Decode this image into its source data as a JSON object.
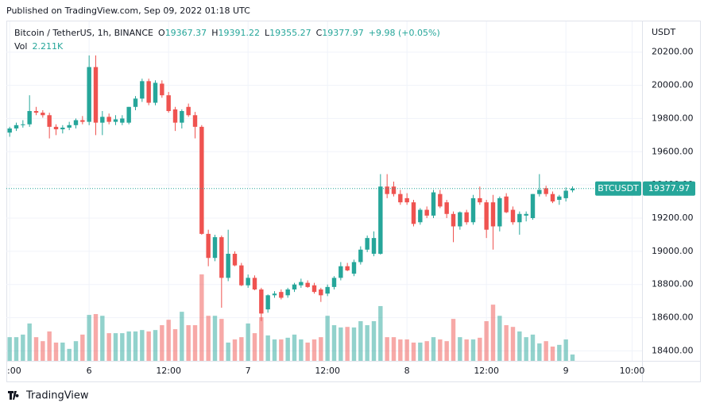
{
  "chart_data": {
    "type": "candlestick",
    "published": "Published on TradingView.com, Sep 09, 2022 01:18 UTC",
    "title": "Bitcoin / TetherUS, 1h, BINANCE",
    "ohlc_prefixes": [
      "O",
      "H",
      "L",
      "C"
    ],
    "change_label": "+9.98 (+0.05%)",
    "symbol": "BTCUSDT",
    "ylabel": "USDT",
    "brand": "TradingView",
    "up_color": "#26a69a",
    "down_color": "#ef5350",
    "x": [
      0,
      1,
      2,
      3,
      4,
      5,
      6,
      7,
      8,
      9,
      10,
      11,
      12,
      13,
      14,
      15,
      16,
      17,
      18,
      19,
      20,
      21,
      22,
      23,
      24,
      25,
      26,
      27,
      28,
      29,
      30,
      31,
      32,
      33,
      34,
      35,
      36,
      37,
      38,
      39,
      40,
      41,
      42,
      43,
      44,
      45,
      46,
      47,
      48,
      49,
      50,
      51,
      52,
      53,
      54,
      55,
      56,
      57,
      58,
      59,
      60,
      61,
      62,
      63,
      64,
      65,
      66,
      67,
      68,
      69,
      70,
      71,
      72,
      73,
      74,
      75,
      76,
      77,
      78,
      79,
      80,
      81,
      82,
      83,
      84,
      85
    ],
    "xlim": [
      -0.5,
      95.5
    ],
    "xticks": [
      {
        "value": 0,
        "label": ":00"
      },
      {
        "value": 12,
        "label": "6"
      },
      {
        "value": 24,
        "label": "12:00"
      },
      {
        "value": 36,
        "label": "7"
      },
      {
        "value": 48,
        "label": "12:00"
      },
      {
        "value": 60,
        "label": "8"
      },
      {
        "value": 72,
        "label": "12:00"
      },
      {
        "value": 84,
        "label": "9"
      },
      {
        "value": 94,
        "label": "10:00"
      }
    ],
    "open": [
      19715,
      19740,
      19760,
      19765,
      19845,
      19835,
      19820,
      19750,
      19735,
      19745,
      19760,
      19790,
      19780,
      20110,
      19775,
      19810,
      19780,
      19775,
      19775,
      19870,
      19920,
      20025,
      19895,
      20010,
      19940,
      19855,
      19775,
      19870,
      19820,
      19750,
      19105,
      18960,
      19085,
      18840,
      18985,
      18915,
      18795,
      18840,
      18770,
      18650,
      18735,
      18755,
      18735,
      18770,
      18795,
      18810,
      18795,
      18770,
      18745,
      18785,
      18840,
      18910,
      18865,
      18935,
      19010,
      18985,
      18985,
      19390,
      19390,
      19345,
      19320,
      19295,
      19175,
      19250,
      19215,
      19345,
      19295,
      19225,
      19150,
      19235,
      19175,
      19320,
      19295,
      19295,
      19150,
      19330,
      19250,
      19175,
      19215,
      19200,
      19345,
      19380,
      19345,
      19310,
      19320,
      19367.37
    ],
    "high": [
      19750,
      19775,
      19790,
      19940,
      19870,
      19850,
      19835,
      19765,
      19760,
      19780,
      19800,
      19815,
      20180,
      20180,
      19845,
      19830,
      19820,
      19820,
      19870,
      19935,
      20040,
      20040,
      20030,
      20030,
      19960,
      19870,
      19855,
      19890,
      19840,
      19760,
      19130,
      19100,
      19095,
      19130,
      19000,
      18930,
      18860,
      18855,
      18780,
      18740,
      18760,
      18770,
      18780,
      18810,
      18835,
      18825,
      18810,
      18780,
      18800,
      18850,
      18935,
      18930,
      18950,
      19030,
      19095,
      19120,
      19465,
      19465,
      19420,
      19370,
      19350,
      19310,
      19260,
      19270,
      19370,
      19370,
      19310,
      19240,
      19240,
      19250,
      19340,
      19390,
      19310,
      19340,
      19330,
      19350,
      19270,
      19240,
      19240,
      19345,
      19465,
      19395,
      19360,
      19340,
      19385,
      19391.22
    ],
    "low": [
      19690,
      19725,
      19745,
      19750,
      19820,
      19805,
      19680,
      19700,
      19710,
      19730,
      19740,
      19765,
      19760,
      19700,
      19700,
      19765,
      19760,
      19760,
      19765,
      19850,
      19900,
      19880,
      19880,
      19925,
      19835,
      19725,
      19740,
      19810,
      19680,
      19100,
      18910,
      18940,
      18660,
      18820,
      18910,
      18790,
      18780,
      18765,
      18580,
      18630,
      18720,
      18710,
      18720,
      18755,
      18780,
      18780,
      18745,
      18695,
      18730,
      18770,
      18825,
      18880,
      18850,
      18920,
      18995,
      18970,
      18980,
      19320,
      19330,
      19280,
      19280,
      19150,
      19160,
      19200,
      19200,
      19260,
      19200,
      19055,
      19130,
      19160,
      19160,
      19280,
      19080,
      19010,
      19120,
      19230,
      19160,
      19100,
      19180,
      19190,
      19330,
      19330,
      19290,
      19280,
      19300,
      19355.27
    ],
    "close": [
      19740,
      19760,
      19765,
      19845,
      19835,
      19820,
      19750,
      19735,
      19745,
      19760,
      19790,
      19780,
      20110,
      19775,
      19810,
      19780,
      19795,
      19800,
      19870,
      19920,
      20025,
      19895,
      20015,
      19940,
      19845,
      19775,
      19845,
      19820,
      19750,
      19105,
      18960,
      19085,
      18840,
      18985,
      18915,
      18795,
      18840,
      18770,
      18625,
      18735,
      18745,
      18720,
      18770,
      18800,
      18815,
      18785,
      18755,
      18735,
      18785,
      18840,
      18910,
      18885,
      18935,
      19010,
      19080,
      19080,
      19390,
      19345,
      19345,
      19295,
      19295,
      19165,
      19250,
      19215,
      19355,
      19270,
      19225,
      19150,
      19235,
      19175,
      19320,
      19295,
      19130,
      19150,
      19320,
      19235,
      19175,
      19225,
      19225,
      19345,
      19370,
      19345,
      19300,
      19330,
      19365,
      19377.97
    ],
    "volume": {
      "name": "Vol",
      "last_label": "2.211K",
      "values": [
        8.3,
        8.3,
        9.2,
        13.1,
        8.3,
        6.9,
        10.3,
        6.4,
        6.4,
        4.2,
        6.9,
        9.2,
        16.1,
        16.4,
        15.8,
        9.7,
        9.7,
        9.7,
        10.3,
        10.3,
        10.8,
        10.3,
        10.8,
        12.5,
        14.4,
        11.1,
        17.2,
        12.5,
        12.5,
        30.3,
        15.8,
        15.8,
        14.7,
        6.4,
        7.5,
        8.3,
        13.1,
        9.7,
        15.3,
        8.9,
        7.5,
        7.5,
        8.1,
        9.2,
        7.5,
        6.4,
        7.5,
        8.3,
        15.8,
        12.5,
        11.7,
        11.9,
        11.7,
        13.9,
        12.5,
        13.9,
        19.2,
        8.3,
        8.3,
        7.5,
        7.5,
        6.4,
        6.4,
        6.9,
        8.3,
        7.5,
        6.9,
        14.7,
        8.3,
        7.5,
        7.5,
        8.1,
        13.9,
        19.7,
        15.8,
        12.5,
        11.9,
        10.3,
        8.3,
        9.2,
        6.1,
        6.9,
        5.0,
        5.6,
        7.5,
        2.211
      ]
    },
    "ylim": [
      18340,
      20385
    ],
    "yticks": [
      {
        "value": 18400,
        "label": "18400.00"
      },
      {
        "value": 18600,
        "label": "18600.00"
      },
      {
        "value": 18800,
        "label": "18800.00"
      },
      {
        "value": 19000,
        "label": "19000.00"
      },
      {
        "value": 19200,
        "label": "19200.00"
      },
      {
        "value": 19400,
        "label": "19400.00"
      },
      {
        "value": 19600,
        "label": "19600.00"
      },
      {
        "value": 19800,
        "label": "19800.00"
      },
      {
        "value": 20000,
        "label": "20000.00"
      },
      {
        "value": 20200,
        "label": "20200.00"
      }
    ],
    "y2lim": [
      0,
      119
    ],
    "grid": true
  }
}
